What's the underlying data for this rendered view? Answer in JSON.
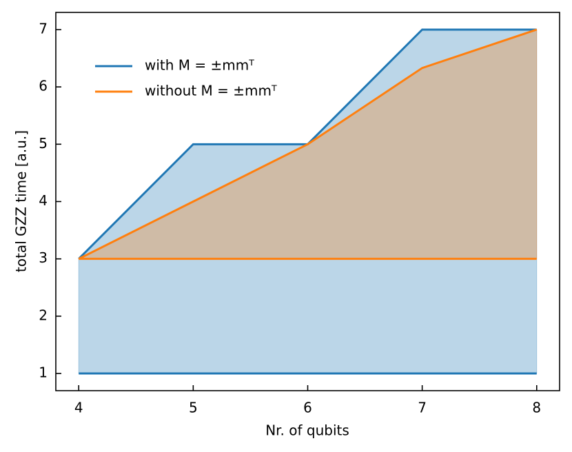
{
  "chart_data": {
    "type": "area-band",
    "x_label": "Nr. of qubits",
    "y_label": "total GZZ time [a.u.]",
    "x": [
      4,
      5,
      6,
      7,
      8
    ],
    "series": [
      {
        "name": "with M = ±mmᵀ",
        "color": "#1f77b4",
        "values": [
          3,
          5,
          5,
          7,
          7
        ],
        "lower": [
          1,
          1,
          1,
          1,
          1
        ]
      },
      {
        "name": "without M = ±mmᵀ",
        "color": "#ff7f0e",
        "values": [
          3,
          4,
          5,
          6.33,
          7
        ],
        "lower": [
          3,
          3,
          3,
          3,
          3
        ]
      }
    ],
    "xlim": [
      3.8,
      8.2
    ],
    "ylim": [
      0.7,
      7.3
    ],
    "xticks": [
      4,
      5,
      6,
      7,
      8
    ],
    "yticks": [
      1,
      2,
      3,
      4,
      5,
      6,
      7
    ],
    "legend": "upper left",
    "fill_opacity": 0.3
  }
}
